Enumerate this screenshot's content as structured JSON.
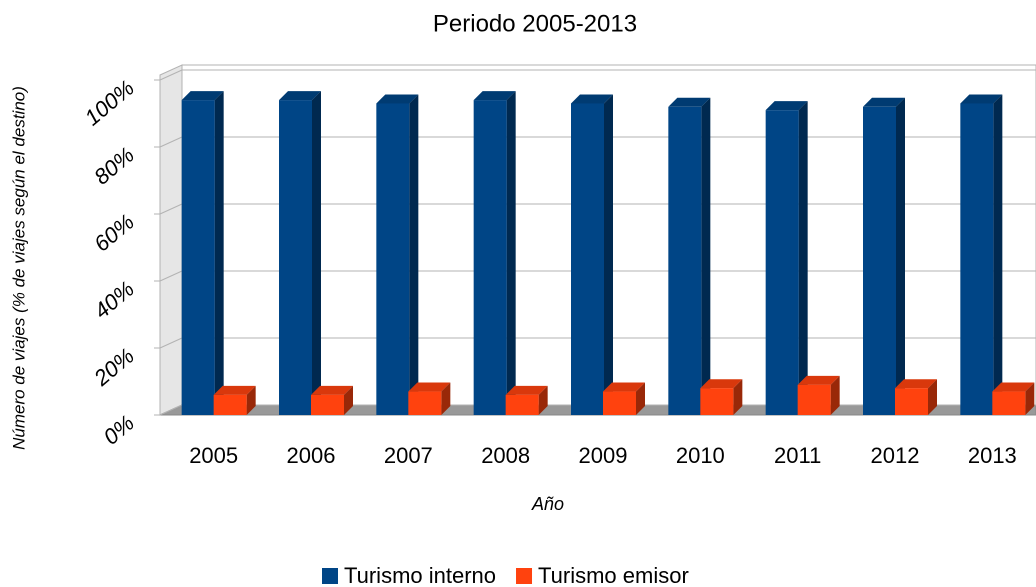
{
  "chart_data": {
    "type": "bar3d",
    "title": "Periodo 2005-2013",
    "x_label": "Año",
    "y_label": "Número de viajes (% de viajes según el destino)",
    "categories": [
      "2005",
      "2006",
      "2007",
      "2008",
      "2009",
      "2010",
      "2011",
      "2012",
      "2013"
    ],
    "series": [
      {
        "name": "Turismo interno",
        "color": "#004586",
        "values": [
          94,
          94,
          93,
          94,
          93,
          92,
          91,
          92,
          93
        ]
      },
      {
        "name": "Turismo emisor",
        "color": "#ff420e",
        "values": [
          6,
          6,
          7,
          6,
          7,
          8,
          9,
          8,
          7
        ]
      }
    ],
    "ylim": [
      0,
      100
    ],
    "yticks": [
      {
        "value": 0,
        "label": "0%"
      },
      {
        "value": 20,
        "label": "20%"
      },
      {
        "value": 40,
        "label": "40%"
      },
      {
        "value": 60,
        "label": "60%"
      },
      {
        "value": 80,
        "label": "80%"
      },
      {
        "value": 100,
        "label": "100%"
      }
    ],
    "grid": true,
    "legend": "bottom"
  }
}
